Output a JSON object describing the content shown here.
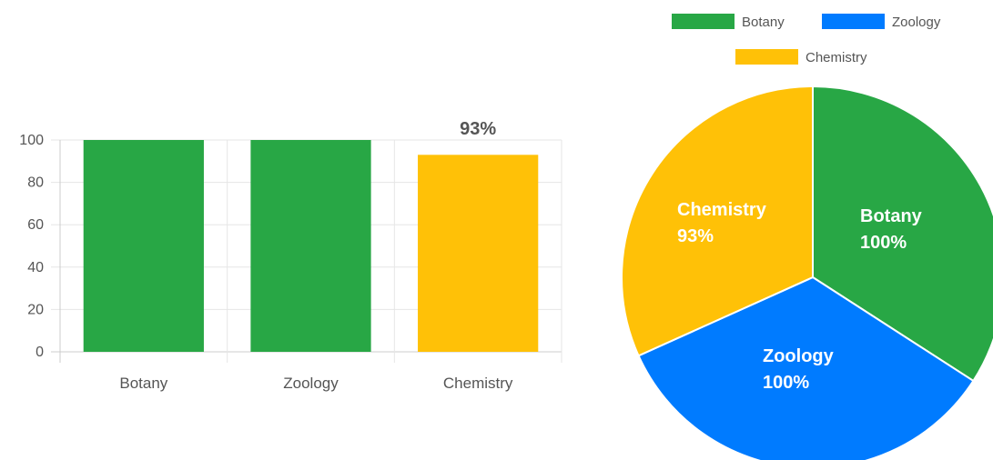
{
  "chart_data": [
    {
      "type": "bar",
      "categories": [
        "Botany",
        "Zoology",
        "Chemistry"
      ],
      "values": [
        100,
        100,
        93
      ],
      "colors": [
        "#28a745",
        "#28a745",
        "#ffc107"
      ],
      "data_labels": [
        "",
        "",
        "93%"
      ],
      "ylim": [
        0,
        100
      ],
      "yticks": [
        0,
        20,
        40,
        60,
        80,
        100
      ],
      "grid": true,
      "legend": "none"
    },
    {
      "type": "pie",
      "categories": [
        "Botany",
        "Zoology",
        "Chemistry"
      ],
      "values": [
        100,
        100,
        93
      ],
      "colors": [
        "#28a745",
        "#007bff",
        "#ffc107"
      ],
      "slice_labels": [
        {
          "name": "Botany",
          "value": "100%"
        },
        {
          "name": "Zoology",
          "value": "100%"
        },
        {
          "name": "Chemistry",
          "value": "93%"
        }
      ],
      "legend": "top"
    }
  ]
}
